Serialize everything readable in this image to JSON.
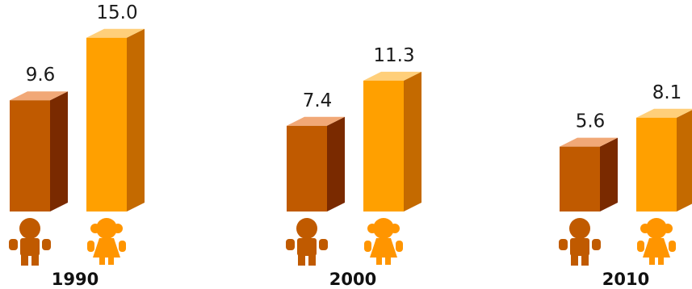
{
  "chart_data": {
    "type": "bar",
    "categories": [
      "1990",
      "2000",
      "2010"
    ],
    "series": [
      {
        "values": [
          9.6,
          7.4,
          5.6
        ],
        "color": "#c05a00",
        "icon": "boy-figure-icon"
      },
      {
        "values": [
          15.0,
          11.3,
          8.1
        ],
        "color": "#ffa000",
        "icon": "girl-figure-icon"
      }
    ],
    "value_labels": [
      [
        "9.6",
        "7.4",
        "5.6"
      ],
      [
        "15.0",
        "11.3",
        "8.1"
      ]
    ],
    "title": "",
    "xlabel": "",
    "ylabel": "",
    "ylim": [
      0,
      15
    ],
    "grid": false,
    "legend": "none"
  }
}
